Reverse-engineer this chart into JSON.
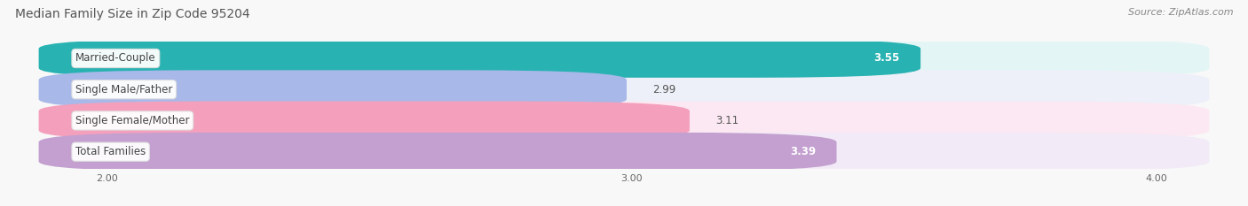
{
  "title": "Median Family Size in Zip Code 95204",
  "source": "Source: ZipAtlas.com",
  "categories": [
    "Married-Couple",
    "Single Male/Father",
    "Single Female/Mother",
    "Total Families"
  ],
  "values": [
    3.55,
    2.99,
    3.11,
    3.39
  ],
  "bar_colors": [
    "#29b2b2",
    "#a8b8e8",
    "#f4a0bc",
    "#c4a0d0"
  ],
  "bar_bg_colors": [
    "#e4f5f5",
    "#edf0f8",
    "#fce8f2",
    "#f2eaf6"
  ],
  "value_inside": [
    true,
    false,
    false,
    true
  ],
  "xlim_min": 1.82,
  "xlim_max": 4.15,
  "xticks": [
    2.0,
    3.0,
    4.0
  ],
  "xtick_labels": [
    "2.00",
    "3.00",
    "4.00"
  ],
  "bar_height": 0.62,
  "bar_gap": 0.38,
  "figsize": [
    14.06,
    2.33
  ],
  "dpi": 100,
  "title_fontsize": 10,
  "source_fontsize": 8,
  "label_fontsize": 8.5,
  "value_fontsize": 8.5,
  "tick_fontsize": 8,
  "background_color": "#f8f8f8",
  "grid_color": "#cccccc",
  "label_text_color": "#444444",
  "value_inside_color": "#ffffff",
  "value_outside_color": "#555555"
}
